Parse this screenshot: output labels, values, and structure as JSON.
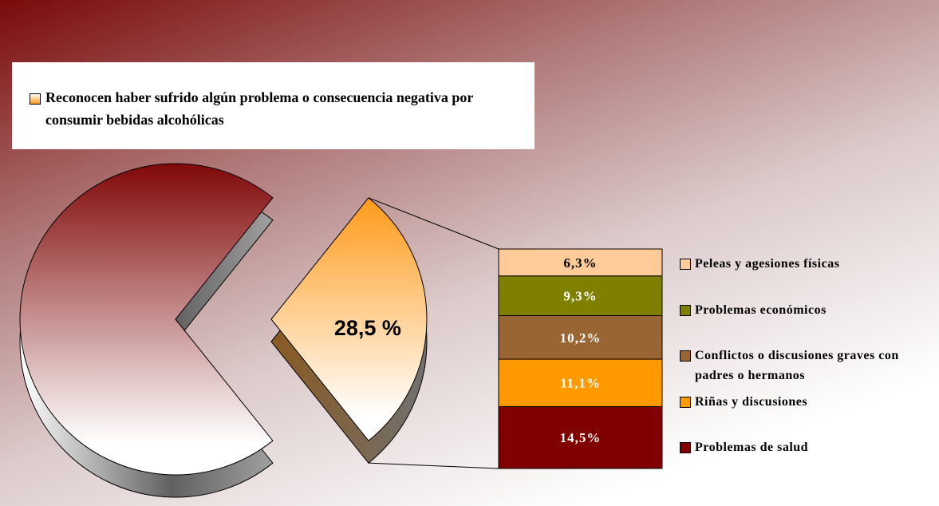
{
  "chart_data": [
    {
      "type": "pie",
      "categories": [
        "Reconocen haber sufrido algún problema o consecuencia negativa por consumir bebidas alcohólicas",
        null
      ],
      "values": [
        28.5,
        71.5
      ],
      "value_labels": [
        "28,5 %",
        null
      ],
      "colors": [
        "#ff9a1a",
        "#8b1010"
      ]
    },
    {
      "type": "bar",
      "stacked": true,
      "categories": [
        "Problemas de salud",
        "Riñas y discusiones",
        "Conflictos o discusiones graves con padres o hermanos",
        "Problemas económicos",
        "Peleas y agesiones físicas"
      ],
      "values": [
        14.5,
        11.1,
        10.2,
        9.3,
        6.3
      ],
      "value_labels": [
        "14,5%",
        "11,1%",
        "10,2%",
        "9,3%",
        "6,3%"
      ],
      "colors": [
        "#800000",
        "#ff9900",
        "#996633",
        "#808000",
        "#ffcc99"
      ]
    }
  ]
}
